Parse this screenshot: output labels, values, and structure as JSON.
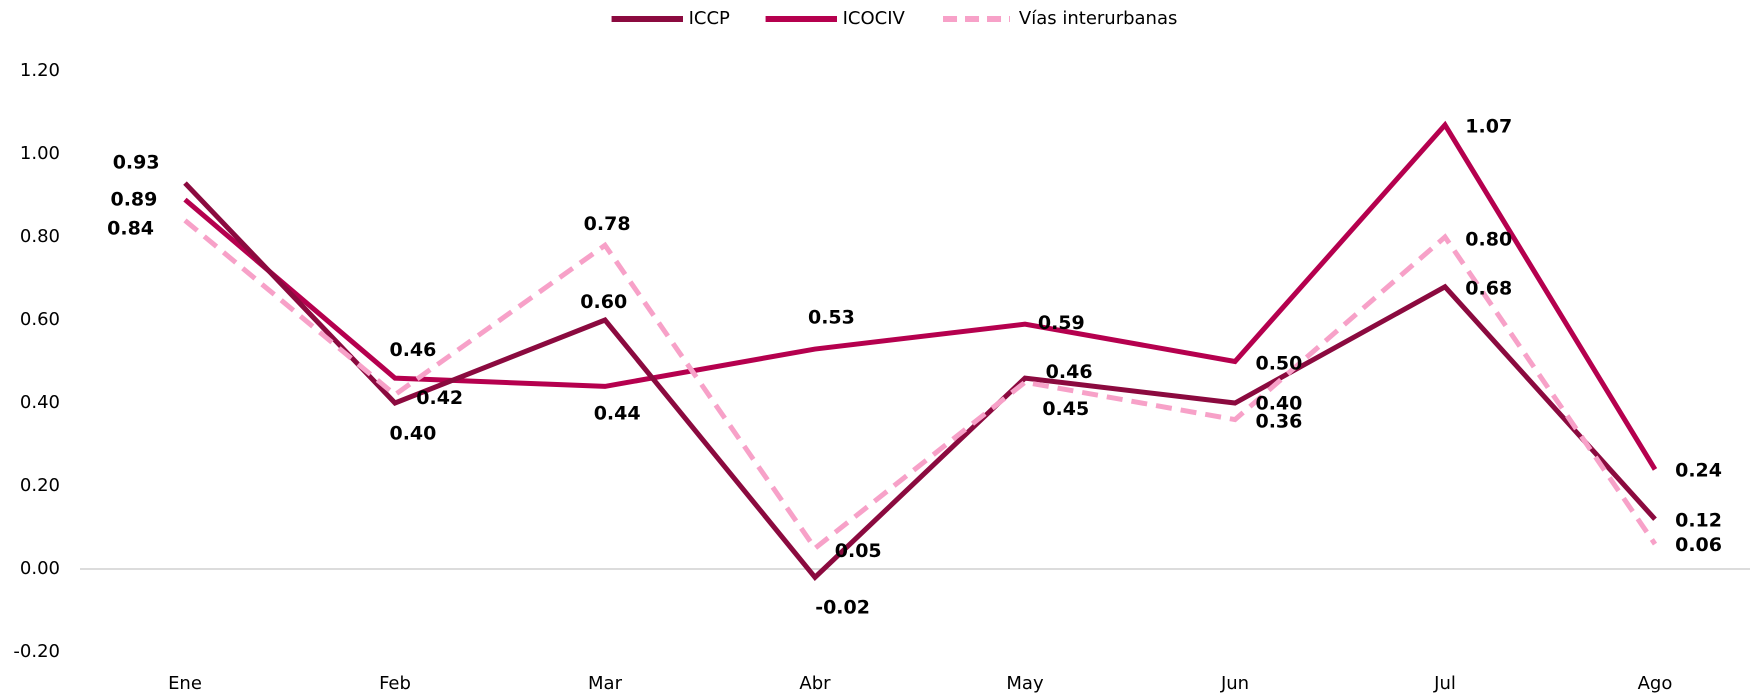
{
  "chart_data": {
    "type": "line",
    "categories": [
      "Ene",
      "Feb",
      "Mar",
      "Abr",
      "May",
      "Jun",
      "Jul",
      "Ago"
    ],
    "series": [
      {
        "name": "ICCP",
        "color": "#8b0a3f",
        "dashed": false,
        "values": [
          0.93,
          0.4,
          0.6,
          -0.02,
          0.46,
          0.4,
          0.68,
          0.12
        ],
        "value_labels": [
          "0.93",
          "0.40",
          "0.60",
          "-0.02",
          "0.46",
          "0.40",
          "0.68",
          "0.12"
        ]
      },
      {
        "name": "ICOCIV",
        "color": "#b5004e",
        "dashed": false,
        "values": [
          0.89,
          0.46,
          0.44,
          0.53,
          0.59,
          0.5,
          1.07,
          0.24
        ],
        "value_labels": [
          "0.89",
          "0.46",
          "0.44",
          "0.53",
          "0.59",
          "0.50",
          "1.07",
          "0.24"
        ]
      },
      {
        "name": "Vías interurbanas",
        "color": "#f7a1c8",
        "dashed": true,
        "values": [
          0.84,
          0.42,
          0.78,
          0.05,
          0.45,
          0.36,
          0.8,
          0.06
        ],
        "value_labels": [
          "0.84",
          "0.42",
          "0.78",
          "0.05",
          "0.45",
          "0.36",
          "0.80",
          "0.06"
        ]
      }
    ],
    "ylim": [
      -0.2,
      1.2
    ],
    "yticks": [
      {
        "value": -0.2,
        "label": "-0.20"
      },
      {
        "value": 0,
        "label": "0.00"
      },
      {
        "value": 0.2,
        "label": "0.20"
      },
      {
        "value": 0.4,
        "label": "0.40"
      },
      {
        "value": 0.6,
        "label": "0.60"
      },
      {
        "value": 0.8,
        "label": "0.80"
      },
      {
        "value": 1.0,
        "label": "1.00"
      },
      {
        "value": 1.2,
        "label": "1.20"
      }
    ],
    "legend": "top",
    "grid": false
  }
}
